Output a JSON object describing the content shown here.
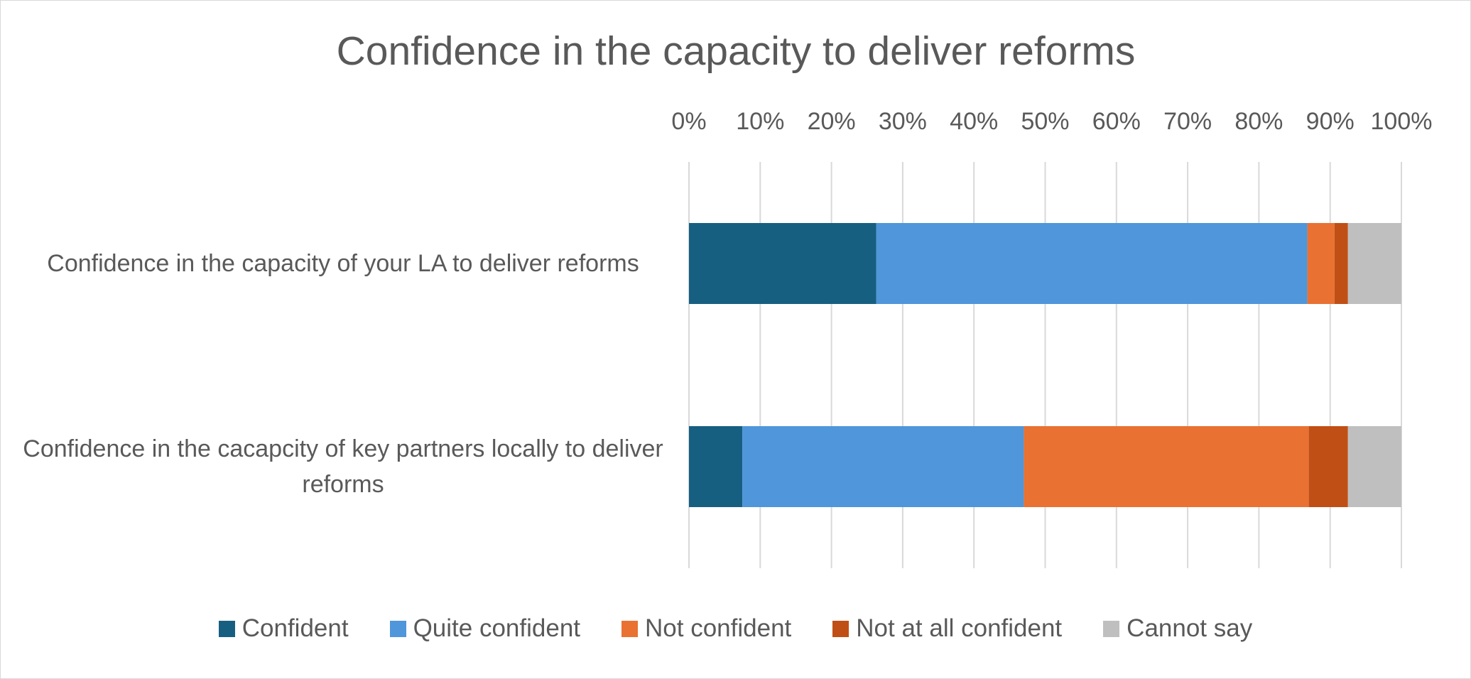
{
  "chart_data": {
    "type": "stacked-barh",
    "title": "Confidence in the capacity to deliver reforms",
    "categories": [
      "Confidence in the capacity of your LA to deliver reforms",
      "Confidence in the cacapcity of key partners locally to deliver reforms"
    ],
    "series": [
      {
        "name": "Confident",
        "color": "#175f81",
        "values": [
          26.3,
          7.5
        ]
      },
      {
        "name": "Quite confident",
        "color": "#4f96db",
        "values": [
          60.5,
          39.5
        ]
      },
      {
        "name": "Not confident",
        "color": "#e97132",
        "values": [
          3.8,
          40
        ]
      },
      {
        "name": "Not at all confident",
        "color": "#c04f15",
        "values": [
          1.9,
          5.5
        ]
      },
      {
        "name": "Cannot say",
        "color": "#bfbfbf",
        "values": [
          7.5,
          7.5
        ]
      }
    ],
    "xlim": [
      0,
      100
    ],
    "xticks": [
      {
        "value": 0,
        "label": "0%"
      },
      {
        "value": 10,
        "label": "10%"
      },
      {
        "value": 20,
        "label": "20%"
      },
      {
        "value": 30,
        "label": "30%"
      },
      {
        "value": 40,
        "label": "40%"
      },
      {
        "value": 50,
        "label": "50%"
      },
      {
        "value": 60,
        "label": "60%"
      },
      {
        "value": 70,
        "label": "70%"
      },
      {
        "value": 80,
        "label": "80%"
      },
      {
        "value": 90,
        "label": "90%"
      },
      {
        "value": 100,
        "label": "100%"
      }
    ],
    "grid": true,
    "legend": "bottom"
  }
}
